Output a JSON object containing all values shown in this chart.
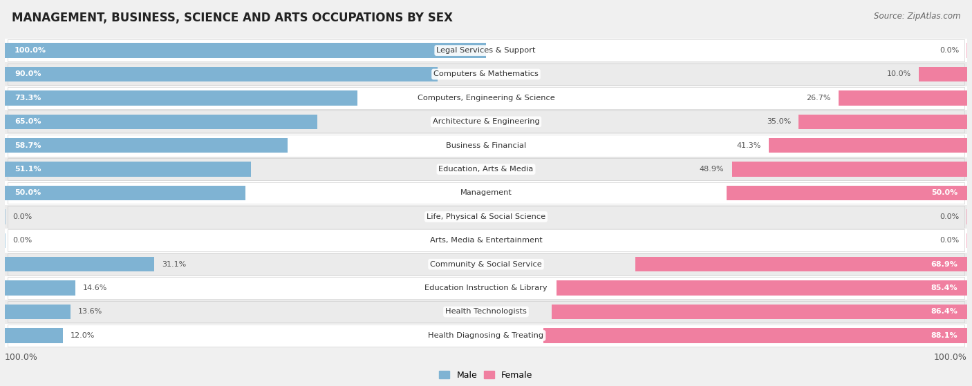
{
  "title": "MANAGEMENT, BUSINESS, SCIENCE AND ARTS OCCUPATIONS BY SEX",
  "source": "Source: ZipAtlas.com",
  "categories": [
    "Legal Services & Support",
    "Computers & Mathematics",
    "Computers, Engineering & Science",
    "Architecture & Engineering",
    "Business & Financial",
    "Education, Arts & Media",
    "Management",
    "Life, Physical & Social Science",
    "Arts, Media & Entertainment",
    "Community & Social Service",
    "Education Instruction & Library",
    "Health Technologists",
    "Health Diagnosing & Treating"
  ],
  "male_values": [
    100.0,
    90.0,
    73.3,
    65.0,
    58.7,
    51.1,
    50.0,
    0.0,
    0.0,
    31.1,
    14.6,
    13.6,
    12.0
  ],
  "female_values": [
    0.0,
    10.0,
    26.7,
    35.0,
    41.3,
    48.9,
    50.0,
    0.0,
    0.0,
    68.9,
    85.4,
    86.4,
    88.1
  ],
  "male_color": "#7fb3d3",
  "female_color": "#f07fa0",
  "male_label": "Male",
  "female_label": "Female",
  "bg_color": "#f0f0f0",
  "row_colors": [
    "#ffffff",
    "#ebebeb"
  ],
  "title_fontsize": 12,
  "source_fontsize": 8.5,
  "bar_label_fontsize": 8.0,
  "cat_label_fontsize": 8.2,
  "bar_height": 0.62,
  "stub_size": 8.0
}
